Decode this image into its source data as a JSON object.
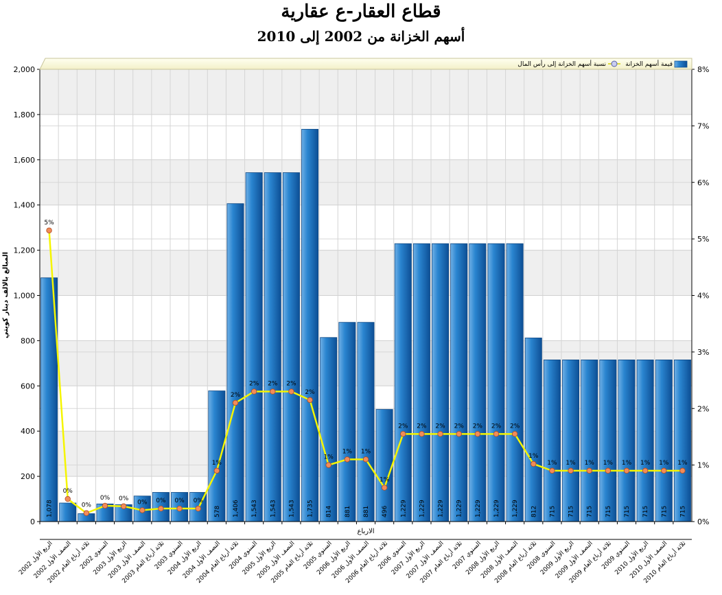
{
  "chart_data": {
    "type": "bar",
    "title": "قطاع العقار-ع عقارية",
    "subtitle": "أسهم الخزانة من 2002 إلى 2010",
    "xlabel": "الارباع",
    "ylabel": "المبالغ بالالف دينار كويتي",
    "ylim": [
      0,
      2000
    ],
    "y_ticks": [
      "0",
      "200",
      "400",
      "600",
      "800",
      "1,000",
      "1,200",
      "1,400",
      "1,600",
      "1,800",
      "2,000"
    ],
    "y2lim": [
      0,
      8
    ],
    "y2_ticks": [
      "0%",
      "1%",
      "2%",
      "3%",
      "4%",
      "5%",
      "6%",
      "7%",
      "8%"
    ],
    "legend_position": "top",
    "categories": [
      "الربع الأول 2002",
      "النصف الأول 2002",
      "ثلاثة أرباع العام 2002",
      "السنوي 2002",
      "الربع الأول 2003",
      "النصف الأول 2003",
      "ثلاثة أرباع العام 2003",
      "السنوي 2003",
      "الربع الأول 2004",
      "النصف الأول 2004",
      "ثلاثة أرباع العام 2004",
      "السنوي 2004",
      "الربع الأول 2005",
      "النصف الأول 2005",
      "ثلاثة أرباع العام 2005",
      "السنوي 2005",
      "الربع الأول 2006",
      "النصف الأول 2006",
      "ثلاثة أرباع العام 2006",
      "السنوي 2006",
      "الربع الأول 2007",
      "النصف الأول 2007",
      "ثلاثة أرباع العام 2007",
      "السنوي 2007",
      "الربع الأول 2008",
      "النصف الأول 2008",
      "ثلاثة أرباع العام 2008",
      "السنوي 2008",
      "الربع الأول 2009",
      "النصف الأول 2009",
      "ثلاثة أرباع العام 2009",
      "السنوي 2009",
      "الربع الأول 2010",
      "النصف الأول 2010",
      "ثلاثة أرباع العام 2010"
    ],
    "series": [
      {
        "name": "قيمة أسهم الخزانة",
        "type": "bar",
        "color": "#1f78c8",
        "values": [
          1078,
          82,
          35,
          78,
          75,
          113,
          129,
          129,
          129,
          578,
          1406,
          1543,
          1543,
          1543,
          1735,
          814,
          881,
          881,
          496,
          1229,
          1229,
          1229,
          1229,
          1229,
          1229,
          1229,
          812,
          715,
          715,
          715,
          715,
          715,
          715,
          715,
          715
        ],
        "labels": [
          "1,078",
          "",
          "",
          "",
          "",
          "",
          "",
          "",
          "",
          "578",
          "1,406",
          "1,543",
          "1,543",
          "1,543",
          "1,735",
          "814",
          "881",
          "881",
          "496",
          "1,229",
          "1,229",
          "1,229",
          "1,229",
          "1,229",
          "1,229",
          "1,229",
          "812",
          "715",
          "715",
          "715",
          "715",
          "715",
          "715",
          "715",
          "715"
        ]
      },
      {
        "name": "نسبة أسهم الخزانة إلى رأس المال",
        "type": "line",
        "axis": "right",
        "color": "#f5f500",
        "values": [
          5.15,
          0.4,
          0.15,
          0.28,
          0.27,
          0.2,
          0.23,
          0.23,
          0.23,
          0.9,
          2.1,
          2.3,
          2.3,
          2.3,
          2.15,
          1.0,
          1.1,
          1.1,
          0.6,
          1.55,
          1.55,
          1.55,
          1.55,
          1.55,
          1.55,
          1.55,
          1.02,
          0.9,
          0.9,
          0.9,
          0.9,
          0.9,
          0.9,
          0.9,
          0.9
        ],
        "labels": [
          "5%",
          "0%",
          "0%",
          "0%",
          "0%",
          "0%",
          "0%",
          "0%",
          "0%",
          "1%",
          "2%",
          "2%",
          "2%",
          "2%",
          "2%",
          "1%",
          "1%",
          "1%",
          "1%",
          "2%",
          "2%",
          "2%",
          "2%",
          "2%",
          "2%",
          "2%",
          "1%",
          "1%",
          "1%",
          "1%",
          "1%",
          "1%",
          "1%",
          "1%",
          "1%"
        ]
      }
    ]
  }
}
